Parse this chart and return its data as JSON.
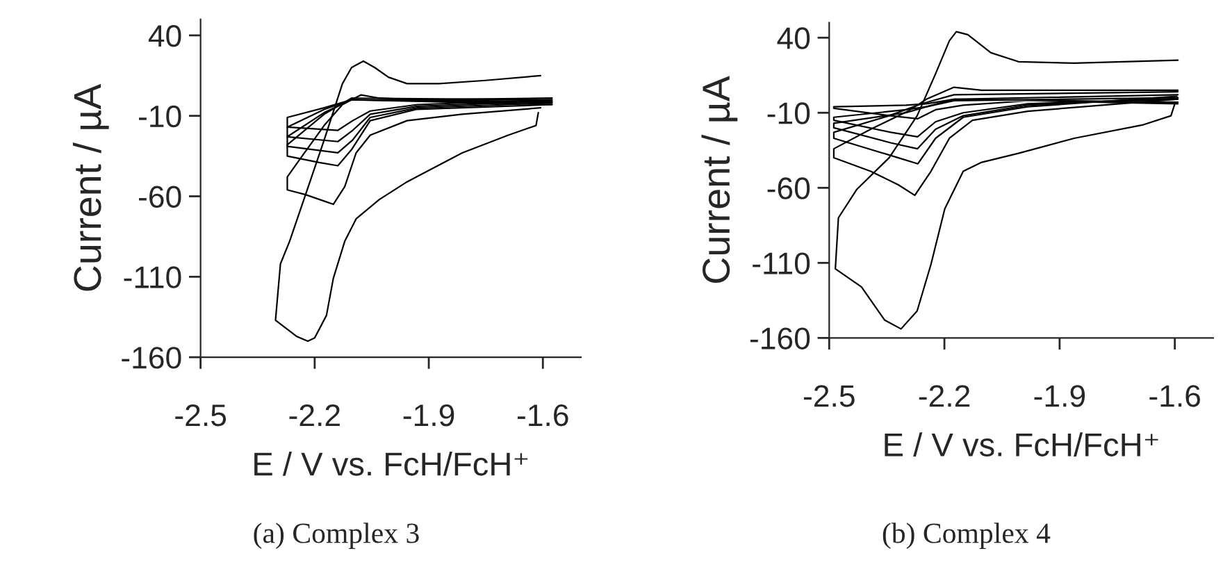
{
  "chart_data": [
    {
      "type": "line",
      "xlabel": "E / V vs. FcH/FcH⁺",
      "ylabel": "Current / µA",
      "xlim": [
        -2.5,
        -1.5
      ],
      "ylim": [
        -160,
        50
      ],
      "xticks": [
        -2.5,
        -2.2,
        -1.9,
        -1.6
      ],
      "yticks": [
        -160,
        -110,
        -60,
        -10,
        40
      ],
      "grid": false,
      "legend": false,
      "annotations": [
        "(a) Complex 3"
      ],
      "series": [
        {
          "color": "#000000",
          "x": [
            -1.612,
            -1.618,
            -1.691,
            -1.812,
            -1.957,
            -2.03,
            -2.091,
            -2.121,
            -2.151,
            -2.169,
            -2.2,
            -2.218,
            -2.248,
            -2.303,
            -2.29,
            -2.266,
            -2.224,
            -2.175,
            -2.127,
            -2.103,
            -2.072,
            -2.042,
            -2.006,
            -1.957,
            -1.873,
            -1.751,
            -1.606
          ],
          "values": [
            -8,
            -16,
            -22,
            -33,
            -51,
            -62,
            -74,
            -88,
            -111,
            -134,
            -148,
            -150,
            -147,
            -137,
            -102,
            -88,
            -59,
            -25,
            10,
            20,
            24,
            20,
            14,
            10,
            10,
            12,
            15
          ]
        },
        {
          "color": "#000000",
          "x": [
            -1.606,
            -1.812,
            -1.957,
            -2.054,
            -2.091,
            -2.121,
            -2.151,
            -2.187,
            -2.224,
            -2.272,
            -2.272,
            -2.236,
            -2.175,
            -2.127,
            -2.078,
            -2.03,
            -1.933,
            -1.576
          ],
          "values": [
            -5,
            -9,
            -13,
            -22,
            -33,
            -54,
            -65,
            -62,
            -59,
            -56,
            -48,
            -36,
            -16,
            -3,
            3,
            1,
            0,
            1
          ]
        },
        {
          "color": "#000000",
          "x": [
            -1.576,
            -1.933,
            -2.054,
            -2.103,
            -2.139,
            -2.188,
            -2.272,
            -2.272,
            -2.175,
            -2.103,
            -1.576
          ],
          "values": [
            -3,
            -6,
            -13,
            -31,
            -41,
            -39,
            -35,
            -28,
            -9,
            1,
            0
          ]
        },
        {
          "color": "#000000",
          "x": [
            -1.576,
            -1.93,
            -2.054,
            -2.1,
            -2.139,
            -2.272,
            -2.272,
            -2.175,
            -2.103,
            -1.576
          ],
          "values": [
            -2,
            -5,
            -11,
            -25,
            -33,
            -29,
            -23,
            -8,
            0,
            -1
          ]
        },
        {
          "color": "#000000",
          "x": [
            -1.576,
            -1.93,
            -2.054,
            -2.1,
            -2.139,
            -2.272,
            -2.272,
            -2.175,
            -2.103,
            -1.576
          ],
          "values": [
            -1,
            -4,
            -9,
            -19,
            -26,
            -23,
            -17,
            -6,
            0,
            -2
          ]
        },
        {
          "color": "#000000",
          "x": [
            -1.576,
            -1.93,
            -2.054,
            -2.1,
            -2.139,
            -2.272,
            -2.272,
            -2.175,
            -2.103,
            -1.576
          ],
          "values": [
            0,
            -3,
            -7,
            -13,
            -19,
            -17,
            -11,
            -5,
            0,
            -3
          ]
        }
      ]
    },
    {
      "type": "line",
      "xlabel": "E / V vs. FcH/FcH⁺",
      "ylabel": "Current / µA",
      "xlim": [
        -2.5,
        -1.5
      ],
      "ylim": [
        -160,
        50
      ],
      "xticks": [
        -2.5,
        -2.2,
        -1.9,
        -1.6
      ],
      "yticks": [
        -160,
        -110,
        -60,
        -10,
        40
      ],
      "grid": false,
      "legend": false,
      "annotations": [
        "(b) Complex 4"
      ],
      "series": [
        {
          "color": "#000000",
          "x": [
            -1.6,
            -1.61,
            -1.682,
            -1.862,
            -2.007,
            -2.103,
            -2.151,
            -2.199,
            -2.235,
            -2.271,
            -2.313,
            -2.356,
            -2.416,
            -2.484,
            -2.476,
            -2.428,
            -2.344,
            -2.271,
            -2.223,
            -2.187,
            -2.169,
            -2.139,
            -2.079,
            -2.007,
            -1.862,
            -1.592
          ],
          "values": [
            -4,
            -12,
            -18,
            -27,
            -37,
            -43,
            -49,
            -74,
            -111,
            -142,
            -154,
            -148,
            -126,
            -114,
            -80,
            -61,
            -40,
            -12,
            16,
            38,
            44,
            42,
            30,
            24,
            23,
            25
          ]
        },
        {
          "color": "#000000",
          "x": [
            -1.598,
            -1.983,
            -2.127,
            -2.187,
            -2.235,
            -2.277,
            -2.32,
            -2.392,
            -2.488,
            -2.488,
            -2.392,
            -2.295,
            -2.247,
            -2.175,
            -2.103,
            -1.592
          ],
          "values": [
            -1,
            -9,
            -15,
            -27,
            -49,
            -65,
            -58,
            -49,
            -40,
            -34,
            -21,
            -9,
            -1,
            7,
            5,
            5
          ]
        },
        {
          "color": "#000000",
          "x": [
            -1.595,
            -1.983,
            -2.151,
            -2.223,
            -2.269,
            -2.32,
            -2.488,
            -2.488,
            -2.344,
            -2.259,
            -2.175,
            -1.592
          ],
          "values": [
            1,
            -6,
            -13,
            -27,
            -44,
            -40,
            -27,
            -23,
            -12,
            -4,
            2,
            4
          ]
        },
        {
          "color": "#000000",
          "x": [
            -1.592,
            -1.983,
            -2.151,
            -2.223,
            -2.27,
            -2.34,
            -2.488,
            -2.488,
            -2.3,
            -2.247,
            -2.175,
            -1.592
          ],
          "values": [
            0,
            -5,
            -12,
            -21,
            -34,
            -30,
            -20,
            -17,
            -10,
            -6,
            -1,
            2
          ]
        },
        {
          "color": "#000000",
          "x": [
            -1.592,
            -1.983,
            -2.151,
            -2.223,
            -2.27,
            -2.34,
            -2.488,
            -2.488,
            -2.3,
            -2.247,
            -2.175,
            -1.592
          ],
          "values": [
            -1,
            -4,
            -10,
            -16,
            -26,
            -23,
            -15,
            -13,
            -8,
            -6,
            -2,
            0
          ]
        },
        {
          "color": "#000000",
          "x": [
            -1.592,
            -1.983,
            -2.151,
            -2.223,
            -2.27,
            -2.34,
            -2.488,
            -2.488,
            -2.3,
            -2.247,
            -2.175,
            -1.592
          ],
          "values": [
            -4,
            -2,
            -5,
            -8,
            -14,
            -12,
            -7,
            -6,
            -5,
            -4,
            -1,
            -3
          ]
        }
      ]
    }
  ]
}
